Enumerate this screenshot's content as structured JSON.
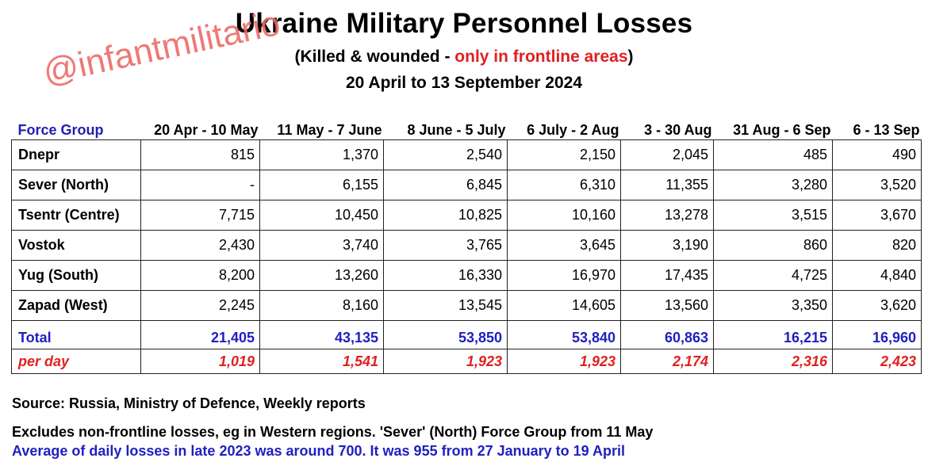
{
  "title": "Ukraine Military Personnel Losses",
  "subtitle": {
    "open": "(Killed & wounded - ",
    "highlight": "only in frontline areas",
    "close": ")"
  },
  "date_range": "20 April to 13 September 2024",
  "watermark": "@infantmilitario",
  "colors": {
    "header_blue": "#2020b0",
    "total_blue": "#2020c0",
    "highlight_red": "#e02020",
    "watermark": "#ee6a6a"
  },
  "table": {
    "row_header": "Force Group",
    "columns": [
      "20 Apr - 10 May",
      "11 May - 7 June",
      "8 June - 5 July",
      "6 July - 2 Aug",
      "3 - 30 Aug",
      "31 Aug - 6 Sep",
      "6 - 13 Sep"
    ],
    "rows": [
      {
        "name": "Dnepr",
        "values": [
          "815",
          "1,370",
          "2,540",
          "2,150",
          "2,045",
          "485",
          "490"
        ]
      },
      {
        "name": "Sever (North)",
        "values": [
          "-",
          "6,155",
          "6,845",
          "6,310",
          "11,355",
          "3,280",
          "3,520"
        ]
      },
      {
        "name": "Tsentr (Centre)",
        "values": [
          "7,715",
          "10,450",
          "10,825",
          "10,160",
          "13,278",
          "3,515",
          "3,670"
        ]
      },
      {
        "name": "Vostok",
        "values": [
          "2,430",
          "3,740",
          "3,765",
          "3,645",
          "3,190",
          "860",
          "820"
        ]
      },
      {
        "name": "Yug (South)",
        "values": [
          "8,200",
          "13,260",
          "16,330",
          "16,970",
          "17,435",
          "4,725",
          "4,840"
        ]
      },
      {
        "name": "Zapad (West)",
        "values": [
          "2,245",
          "8,160",
          "13,545",
          "14,605",
          "13,560",
          "3,350",
          "3,620"
        ]
      }
    ],
    "total": {
      "label": "Total",
      "values": [
        "21,405",
        "43,135",
        "53,850",
        "53,840",
        "60,863",
        "16,215",
        "16,960"
      ]
    },
    "per_day": {
      "label": "per day",
      "values": [
        "1,019",
        "1,541",
        "1,923",
        "1,923",
        "2,174",
        "2,316",
        "2,423"
      ]
    }
  },
  "source": "Source: Russia, Ministry of Defence, Weekly reports",
  "note_excludes": "Excludes non-frontline losses, eg in Western regions. 'Sever' (North) Force Group from 11 May",
  "note_average": "Average of daily losses in late 2023 was around 700. It was 955 from 27 January to 19 April"
}
